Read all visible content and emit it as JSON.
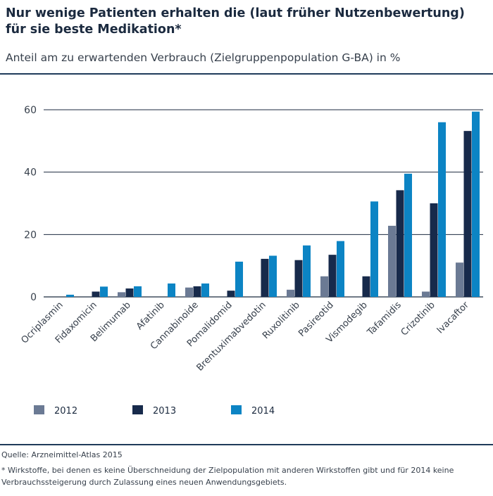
{
  "header": {
    "title": "Nur wenige Patienten erhalten die (laut früher Nutzenbewertung) für sie beste Medikation*",
    "subtitle": "Anteil am zu erwartenden Verbrauch (Zielgruppenpopulation G-BA) in %"
  },
  "footer": {
    "source": "Quelle: Arzneimittel-Atlas 2015",
    "footnote": "* Wirkstoffe, bei denen es keine Überschneidung der Zielpopulation mit anderen Wirkstoffen gibt und für 2014 keine Verbrauchssteigerung durch Zulassung eines neuen Anwendungsgebiets."
  },
  "chart_data": {
    "type": "bar",
    "title": "Nur wenige Patienten erhalten die (laut früher Nutzenbewertung) für sie beste Medikation*",
    "subtitle": "Anteil am zu erwartenden Verbrauch (Zielgruppenpopulation G-BA) in %",
    "ylim": [
      0,
      60
    ],
    "yticks": [
      0,
      20,
      40,
      60
    ],
    "grid": true,
    "legend_position": "bottom",
    "categories": [
      "Ocriplasmin",
      "Fidaxomicin",
      "Belimumab",
      "Afatinib",
      "Cannabinoide",
      "Pomalidomid",
      "Brentuximabvedotin",
      "Ruxolitinib",
      "Pasireotid",
      "Vismodegib",
      "Tafamidis",
      "Crizotinib",
      "Ivacaftor"
    ],
    "series": [
      {
        "name": "2012",
        "color": "#6b7a94",
        "values": [
          null,
          null,
          1.5,
          null,
          3.0,
          null,
          null,
          2.3,
          6.6,
          null,
          22.8,
          1.7,
          11.0
        ]
      },
      {
        "name": "2013",
        "color": "#172a4b",
        "values": [
          null,
          1.7,
          2.7,
          null,
          3.4,
          2.0,
          12.2,
          11.8,
          13.5,
          6.6,
          34.2,
          30.0,
          53.2
        ]
      },
      {
        "name": "2014",
        "color": "#0c84c4",
        "values": [
          0.7,
          3.3,
          3.4,
          4.3,
          4.3,
          11.3,
          13.2,
          16.5,
          17.9,
          30.6,
          39.5,
          56.0,
          59.4
        ]
      }
    ]
  }
}
